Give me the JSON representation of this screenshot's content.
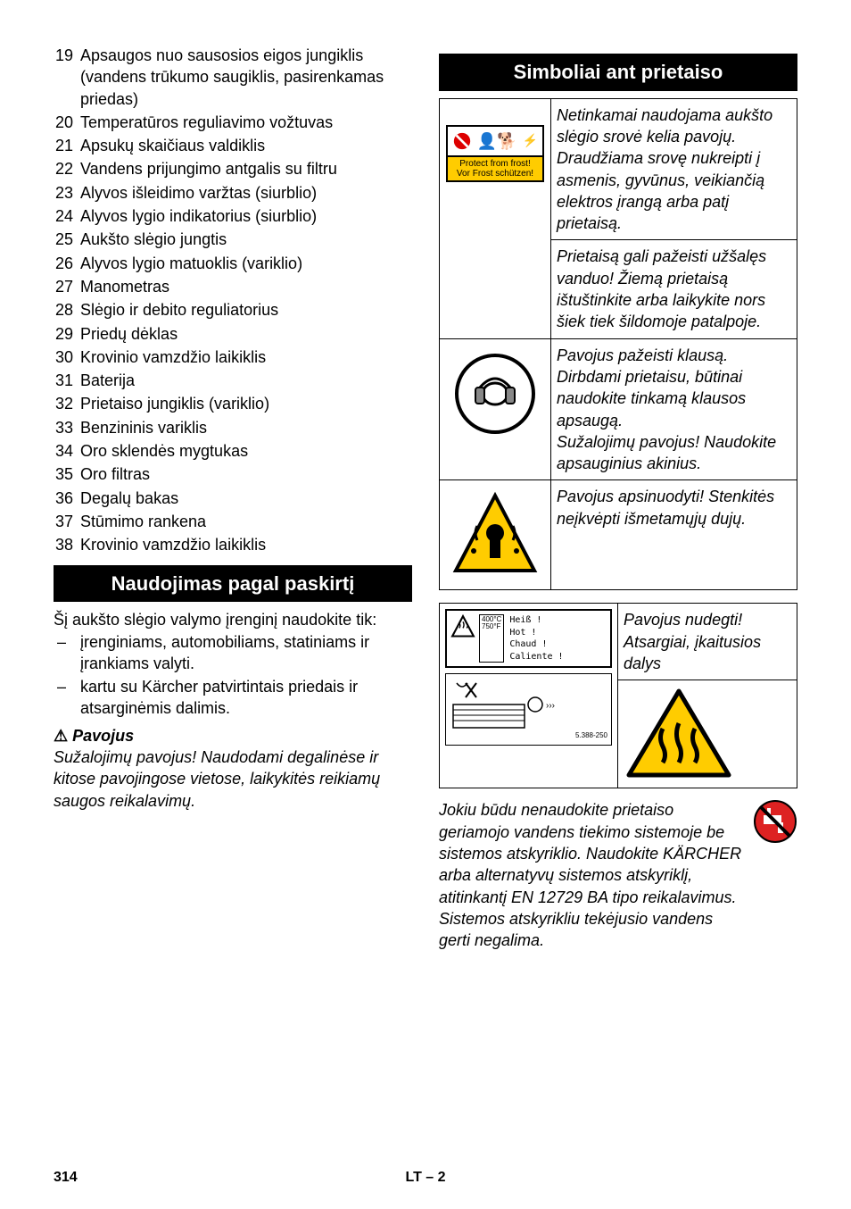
{
  "parts": [
    {
      "n": "19",
      "t": "Apsaugos nuo sausosios eigos jungiklis (vandens trūkumo saugiklis, pasirenkamas priedas)"
    },
    {
      "n": "20",
      "t": "Temperatūros reguliavimo vožtuvas"
    },
    {
      "n": "21",
      "t": "Apsukų skaičiaus valdiklis"
    },
    {
      "n": "22",
      "t": "Vandens prijungimo antgalis su filtru"
    },
    {
      "n": "23",
      "t": "Alyvos išleidimo varžtas (siurblio)"
    },
    {
      "n": "24",
      "t": "Alyvos lygio indikatorius (siurblio)"
    },
    {
      "n": "25",
      "t": "Aukšto slėgio jungtis"
    },
    {
      "n": "26",
      "t": "Alyvos lygio matuoklis (variklio)"
    },
    {
      "n": "27",
      "t": "Manometras"
    },
    {
      "n": "28",
      "t": "Slėgio ir debito reguliatorius"
    },
    {
      "n": "29",
      "t": "Priedų dėklas"
    },
    {
      "n": "30",
      "t": "Krovinio vamzdžio laikiklis"
    },
    {
      "n": "31",
      "t": "Baterija"
    },
    {
      "n": "32",
      "t": "Prietaiso jungiklis (variklio)"
    },
    {
      "n": "33",
      "t": "Benzininis variklis"
    },
    {
      "n": "34",
      "t": "Oro sklendės mygtukas"
    },
    {
      "n": "35",
      "t": "Oro filtras"
    },
    {
      "n": "36",
      "t": "Degalų bakas"
    },
    {
      "n": "37",
      "t": "Stūmimo rankena"
    },
    {
      "n": "38",
      "t": "Krovinio vamzdžio laikiklis"
    }
  ],
  "section_use": "Naudojimas pagal paskirtį",
  "use_intro": "Šį aukšto slėgio valymo įrenginį naudokite tik:",
  "use_items": [
    "įrenginiams, automobiliams, statiniams ir įrankiams valyti.",
    "kartu su Kärcher patvirtintais priedais ir atsarginėmis dalimis."
  ],
  "danger_label": "Pavojus",
  "danger_text": "Sužalojimų pavojus! Naudodami degalinėse ir kitose pavojingose vietose, laikykitės reikiamų saugos reikalavimų.",
  "section_sym": "Simboliai ant prietaiso",
  "sym1a": "Netinkamai naudojama aukšto slėgio srovė kelia pavojų. Draudžiama srovę nukreipti į asmenis, gyvūnus, veikiančią elektros įrangą arba patį prietaisą.",
  "sym1b": "Prietaisą gali pažeisti užšalęs vanduo! Žiemą prietaisą ištuštinkite arba laikykite nors šiek tiek šildomoje patalpoje.",
  "frost_line1": "Protect from frost!",
  "frost_line2": "Vor Frost schützen!",
  "sym2": "Pavojus pažeisti klausą. Dirbdami prietaisu, būtinai naudokite tinkamą klausos apsaugą.\nSužalojimų pavojus! Naudokite  apsauginius akinius.",
  "sym3": "Pavojus apsinuodyti! Stenkitės neįkvėpti išmetamųjų dujų.",
  "hot_label": "Pavojus nudegti! Atsargiai, įkaitusios dalys",
  "hot_words": "Heiß !\nHot !\nChaud !\nCaliente !",
  "hot_temp": "400°C\n750°F",
  "hot_code": "5.388-250",
  "bottom": "Jokiu būdu nenaudokite prietaiso geriamojo vandens tiekimo sistemoje be sistemos atskyriklio. Naudokite KÄRCHER arba alternatyvų sistemos atskyriklį, atitinkantį EN 12729 BA tipo reikalavimus. Sistemos atskyrikliu tekėjusio vandens gerti negalima.",
  "footer_page": "314",
  "footer_mid": "LT  – 2"
}
